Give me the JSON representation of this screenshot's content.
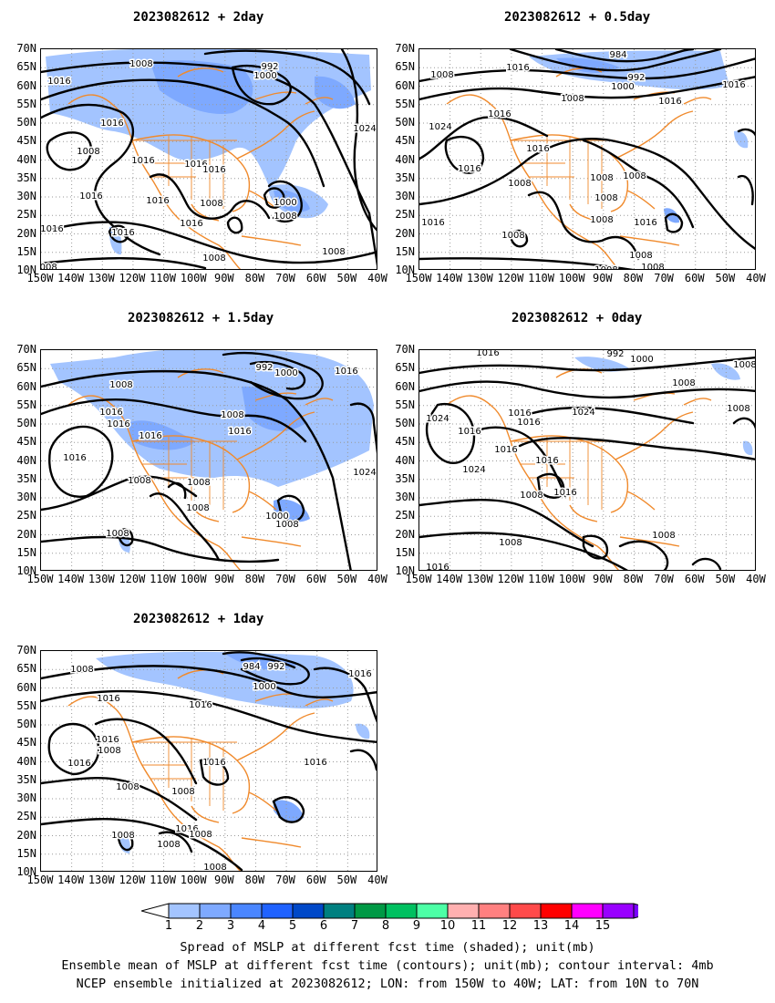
{
  "panels": [
    {
      "id": "p2day",
      "title": "2023082612 + 2day",
      "labels": [
        "1008",
        "992",
        "1000",
        "1016",
        "1016",
        "1008",
        "1016",
        "1016",
        "1016",
        "1016",
        "1016",
        "1016",
        "1000",
        "1008",
        "1008",
        "1016",
        "1008",
        "1008",
        "1016",
        "1008",
        "1024"
      ]
    },
    {
      "id": "p05day",
      "title": "2023082612 + 0.5day",
      "labels": [
        "1008",
        "1016",
        "984",
        "992",
        "1000",
        "1008",
        "1016",
        "1016",
        "1016",
        "1024",
        "1016",
        "1008",
        "1008",
        "1008",
        "1008",
        "1008",
        "1016",
        "1008",
        "1016",
        "1008",
        "1008",
        "1008",
        "1016"
      ]
    },
    {
      "id": "p15day",
      "title": "2023082612 + 1.5day",
      "labels": [
        "1008",
        "992",
        "1000",
        "1016",
        "1016",
        "1016",
        "1008",
        "1016",
        "1016",
        "1008",
        "1008",
        "1008",
        "1008",
        "1000",
        "1008",
        "1016",
        "1024"
      ]
    },
    {
      "id": "p0day",
      "title": "2023082612 + 0day",
      "labels": [
        "1016",
        "992",
        "1000",
        "1008",
        "1008",
        "1016",
        "1016",
        "1024",
        "1024",
        "1016",
        "1016",
        "1016",
        "1024",
        "1008",
        "1016",
        "1008",
        "1008",
        "1016",
        "1008"
      ]
    },
    {
      "id": "p1day",
      "title": "2023082612 + 1day",
      "labels": [
        "1008",
        "984",
        "992",
        "1000",
        "1016",
        "1016",
        "1008",
        "1016",
        "1016",
        "1016",
        "1016",
        "1008",
        "1008",
        "1008",
        "1016",
        "1008",
        "1008",
        "1008",
        "1016"
      ]
    }
  ],
  "axes": {
    "lat_ticks": [
      "70N",
      "65N",
      "60N",
      "55N",
      "50N",
      "45N",
      "40N",
      "35N",
      "30N",
      "25N",
      "20N",
      "15N",
      "10N"
    ],
    "lon_ticks": [
      "150W",
      "140W",
      "130W",
      "120W",
      "110W",
      "100W",
      "90W",
      "80W",
      "70W",
      "60W",
      "50W",
      "40W"
    ]
  },
  "colorbar": {
    "labels": [
      "1",
      "2",
      "3",
      "4",
      "5",
      "6",
      "7",
      "8",
      "9",
      "10",
      "11",
      "12",
      "13",
      "14",
      "15"
    ],
    "colors": [
      "#ffffff",
      "#a3c4ff",
      "#7ea9ff",
      "#4a86ff",
      "#1f62ff",
      "#0048c8",
      "#008080",
      "#009945",
      "#00c060",
      "#4dffa6",
      "#ffb0b0",
      "#ff8080",
      "#ff4a4a",
      "#ff0000",
      "#ff00ff",
      "#9900ff",
      "#7b00ff"
    ]
  },
  "captions": [
    "Spread of MSLP at different fcst time (shaded); unit(mb)",
    "Ensemble mean of MSLP at different fcst time (contours); unit(mb); contour interval: 4mb",
    "NCEP ensemble initialized at 2023082612; LON: from 150W to 40W; LAT: from 10N to 70N"
  ]
}
